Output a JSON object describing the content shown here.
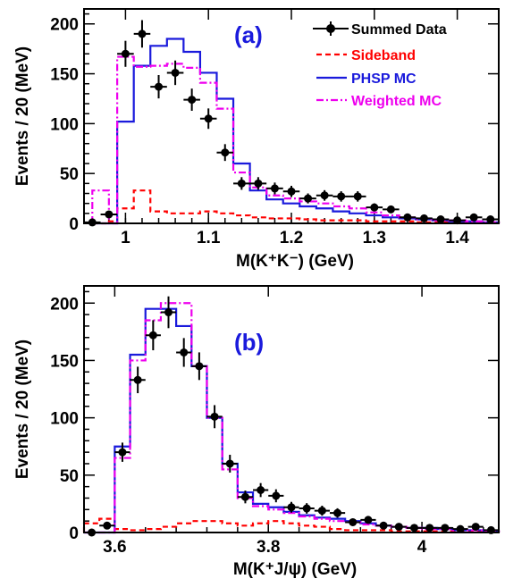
{
  "chart_data": [
    {
      "type": "line",
      "panel_label": "(a)",
      "xlabel": "M(K⁺K⁻) (GeV)",
      "ylabel": "Events / 20 (MeV)",
      "xlim": [
        0.95,
        1.45
      ],
      "ylim": [
        0,
        215
      ],
      "x_ticks": [
        1.0,
        1.1,
        1.2,
        1.3,
        1.4
      ],
      "x_tick_labels": [
        "1",
        "1.1",
        "1.2",
        "1.3",
        "1.4"
      ],
      "y_ticks": [
        0,
        50,
        100,
        150,
        200
      ],
      "y_tick_labels": [
        "0",
        "50",
        "100",
        "150",
        "200"
      ],
      "legend_position": "top-right",
      "legend": [
        {
          "label": "Summed Data",
          "color": "#000000",
          "style": "points"
        },
        {
          "label": "Sideband",
          "color": "#ff0000",
          "style": "dashed"
        },
        {
          "label": "PHSP MC",
          "color": "#1a1adc",
          "style": "solid"
        },
        {
          "label": "Weighted MC",
          "color": "#ee00ee",
          "style": "dashdot"
        }
      ],
      "bin_edges": [
        0.96,
        0.98,
        0.99,
        1.01,
        1.03,
        1.05,
        1.07,
        1.09,
        1.11,
        1.13,
        1.15,
        1.17,
        1.19,
        1.21,
        1.23,
        1.25,
        1.27,
        1.29,
        1.31,
        1.33,
        1.35,
        1.37,
        1.39,
        1.41,
        1.43,
        1.45
      ],
      "series": [
        {
          "name": "Sideband",
          "color": "#ff0000",
          "values": [
            0,
            2,
            15,
            33,
            12,
            10,
            10,
            12,
            10,
            8,
            6,
            5,
            5,
            4,
            3,
            3,
            3,
            2,
            2,
            2,
            1,
            1,
            1,
            1,
            1
          ]
        },
        {
          "name": "PHSP MC",
          "color": "#1a1adc",
          "values": [
            0,
            0,
            102,
            158,
            178,
            185,
            172,
            151,
            125,
            60,
            33,
            24,
            20,
            17,
            15,
            12,
            10,
            8,
            6,
            5,
            4,
            3,
            2,
            2,
            1
          ]
        },
        {
          "name": "Weighted MC",
          "color": "#ee00ee",
          "values": [
            33,
            0,
            167,
            157,
            158,
            160,
            156,
            141,
            115,
            51,
            36,
            28,
            25,
            22,
            20,
            17,
            15,
            11,
            8,
            6,
            4,
            3,
            3,
            2,
            1
          ]
        },
        {
          "name": "Summed Data",
          "color": "#000000",
          "x": [
            0.96,
            0.98,
            1.0,
            1.02,
            1.04,
            1.06,
            1.08,
            1.1,
            1.12,
            1.14,
            1.16,
            1.18,
            1.2,
            1.22,
            1.24,
            1.26,
            1.28,
            1.3,
            1.32,
            1.34,
            1.36,
            1.38,
            1.4,
            1.42,
            1.44
          ],
          "values": [
            1,
            9,
            170,
            190,
            137,
            151,
            124,
            105,
            71,
            40,
            40,
            35,
            32,
            25,
            28,
            27,
            27,
            16,
            14,
            6,
            5,
            4,
            3,
            6,
            4
          ]
        }
      ]
    },
    {
      "type": "line",
      "panel_label": "(b)",
      "xlabel": "M(K⁺J/ψ) (GeV)",
      "ylabel": "Events / 20 (MeV)",
      "xlim": [
        3.56,
        4.1
      ],
      "ylim": [
        0,
        215
      ],
      "x_ticks": [
        3.6,
        3.8,
        4.0
      ],
      "x_tick_labels": [
        "3.6",
        "3.8",
        "4"
      ],
      "y_ticks": [
        0,
        50,
        100,
        150,
        200
      ],
      "y_tick_labels": [
        "0",
        "50",
        "100",
        "150",
        "200"
      ],
      "bin_edges": [
        3.56,
        3.58,
        3.6,
        3.62,
        3.64,
        3.66,
        3.68,
        3.7,
        3.72,
        3.74,
        3.76,
        3.78,
        3.8,
        3.82,
        3.84,
        3.86,
        3.88,
        3.9,
        3.92,
        3.94,
        3.96,
        3.98,
        4.0,
        4.02,
        4.04,
        4.06,
        4.08,
        4.1
      ],
      "series": [
        {
          "name": "Sideband",
          "color": "#ff0000",
          "values": [
            8,
            12,
            3,
            2,
            3,
            5,
            8,
            10,
            10,
            8,
            6,
            8,
            10,
            8,
            6,
            5,
            3,
            2,
            2,
            2,
            1,
            1,
            1,
            1,
            1,
            1,
            1
          ]
        },
        {
          "name": "PHSP MC",
          "color": "#1a1adc",
          "values": [
            0,
            0,
            75,
            155,
            195,
            195,
            180,
            145,
            100,
            60,
            35,
            25,
            22,
            18,
            15,
            13,
            12,
            10,
            8,
            6,
            5,
            4,
            4,
            3,
            2,
            2,
            1
          ]
        },
        {
          "name": "Weighted MC",
          "color": "#ee00ee",
          "values": [
            0,
            0,
            65,
            150,
            185,
            200,
            200,
            145,
            100,
            55,
            30,
            23,
            20,
            17,
            14,
            12,
            10,
            9,
            7,
            6,
            5,
            4,
            3,
            3,
            2,
            2,
            1
          ]
        },
        {
          "name": "Summed Data",
          "color": "#000000",
          "x": [
            3.57,
            3.59,
            3.61,
            3.63,
            3.65,
            3.67,
            3.69,
            3.71,
            3.73,
            3.75,
            3.77,
            3.79,
            3.81,
            3.83,
            3.85,
            3.87,
            3.89,
            3.91,
            3.93,
            3.95,
            3.97,
            3.99,
            4.01,
            4.03,
            4.05,
            4.07,
            4.09
          ],
          "values": [
            0,
            6,
            70,
            133,
            172,
            192,
            157,
            145,
            101,
            60,
            31,
            37,
            32,
            22,
            21,
            19,
            17,
            9,
            11,
            6,
            5,
            4,
            4,
            4,
            3,
            5,
            2
          ]
        }
      ]
    }
  ]
}
